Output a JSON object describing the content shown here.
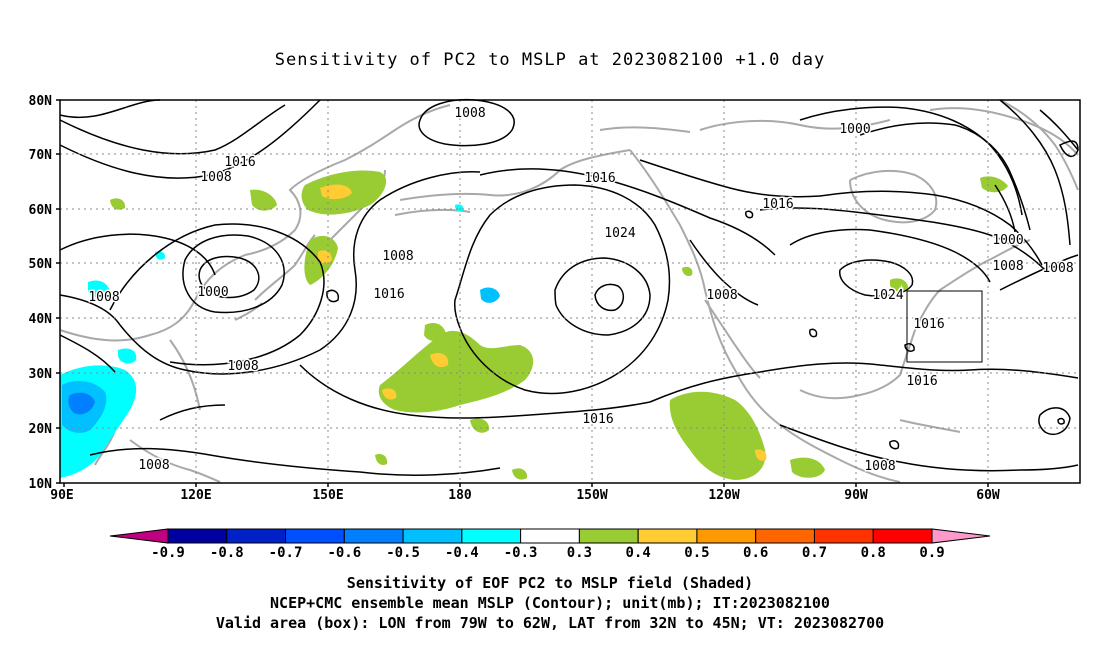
{
  "title": "Sensitivity of PC2 to MSLP at 2023082100 +1.0 day",
  "lat_labels": [
    "80N",
    "70N",
    "60N",
    "50N",
    "40N",
    "30N",
    "20N",
    "10N"
  ],
  "lon_labels": [
    "90E",
    "120E",
    "150E",
    "180",
    "150W",
    "120W",
    "90W",
    "60W"
  ],
  "contour_labels": [
    "1008",
    "1016",
    "1008",
    "1016",
    "1024",
    "1016",
    "1000",
    "1000",
    "1008",
    "1008",
    "1000",
    "1008",
    "1016",
    "1008",
    "1024",
    "1008",
    "1016",
    "1016",
    "1008",
    "1008",
    "1016",
    "1008"
  ],
  "colorbar": {
    "labels": [
      "-0.9",
      "-0.8",
      "-0.7",
      "-0.6",
      "-0.5",
      "-0.4",
      "-0.3",
      "0.3",
      "0.4",
      "0.5",
      "0.6",
      "0.7",
      "0.8",
      "0.9"
    ],
    "colors": [
      "#c00080",
      "#0000a0",
      "#0020c8",
      "#0050ff",
      "#0080ff",
      "#00c0ff",
      "#00ffff",
      "#ffffff",
      "#99cc33",
      "#ffcc33",
      "#ff9900",
      "#ff6600",
      "#ff3300",
      "#ff0000",
      "#ff99cc"
    ]
  },
  "valid_box": {
    "lon_min": -79,
    "lon_max": -62,
    "lat_min": 32,
    "lat_max": 45
  },
  "captions": [
    "Sensitivity of EOF PC2 to MSLP field (Shaded)",
    "NCEP+CMC ensemble mean MSLP (Contour); unit(mb); IT:2023082100",
    "Valid area (box): LON from 79W to 62W, LAT from 32N to 45N; VT: 2023082700"
  ]
}
